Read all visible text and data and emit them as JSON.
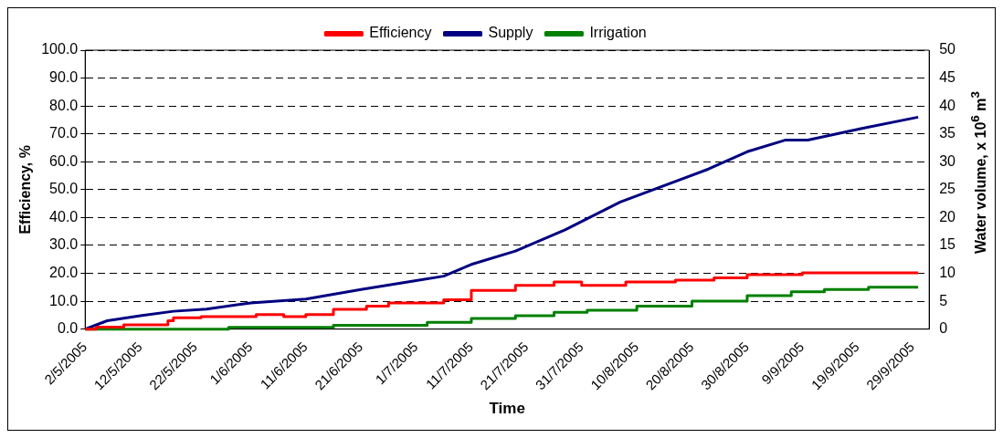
{
  "chart_data": {
    "type": "line",
    "xlabel": "Time",
    "ylabel": "Efficiency, %",
    "y2label": "Water volume, x 10$^{6}$ m$^{3}$",
    "xlim": [
      "2005-05-02",
      "2005-10-02"
    ],
    "xticks": [
      {
        "value": "2005-05-02",
        "label": "2/5/2005"
      },
      {
        "value": "2005-05-12",
        "label": "12/5/2005"
      },
      {
        "value": "2005-05-22",
        "label": "22/5/2005"
      },
      {
        "value": "2005-06-01",
        "label": "1/6/2005"
      },
      {
        "value": "2005-06-11",
        "label": "11/6/2005"
      },
      {
        "value": "2005-06-21",
        "label": "21/6/2005"
      },
      {
        "value": "2005-07-01",
        "label": "1/7/2005"
      },
      {
        "value": "2005-07-11",
        "label": "11/7/2005"
      },
      {
        "value": "2005-07-21",
        "label": "21/7/2005"
      },
      {
        "value": "2005-07-31",
        "label": "31/7/2005"
      },
      {
        "value": "2005-08-10",
        "label": "10/8/2005"
      },
      {
        "value": "2005-08-20",
        "label": "20/8/2005"
      },
      {
        "value": "2005-08-30",
        "label": "30/8/2005"
      },
      {
        "value": "2005-09-09",
        "label": "9/9/2005"
      },
      {
        "value": "2005-09-19",
        "label": "19/9/2005"
      },
      {
        "value": "2005-09-29",
        "label": "29/9/2005"
      }
    ],
    "ylim": [
      0,
      100
    ],
    "yticks": [
      {
        "value": 0,
        "label": "0.0"
      },
      {
        "value": 10,
        "label": "10.0"
      },
      {
        "value": 20,
        "label": "20.0"
      },
      {
        "value": 30,
        "label": "30.0"
      },
      {
        "value": 40,
        "label": "40.0"
      },
      {
        "value": 50,
        "label": "50.0"
      },
      {
        "value": 60,
        "label": "60.0"
      },
      {
        "value": 70,
        "label": "70.0"
      },
      {
        "value": 80,
        "label": "80.0"
      },
      {
        "value": 90,
        "label": "90.0"
      },
      {
        "value": 100,
        "label": "100.0"
      }
    ],
    "y2lim": [
      0,
      50
    ],
    "y2ticks": [
      0,
      5,
      10,
      15,
      20,
      25,
      30,
      35,
      40,
      45,
      50
    ],
    "grid": "y",
    "legend": "top",
    "marker": "none",
    "line_style": "solid",
    "series": [
      {
        "name": "Efficiency",
        "type": "step",
        "color": "#ff0000",
        "x": [
          "2005-05-02",
          "2005-05-04",
          "2005-05-09",
          "2005-05-17",
          "2005-05-18",
          "2005-05-23",
          "2005-06-02",
          "2005-06-07",
          "2005-06-11",
          "2005-06-16",
          "2005-06-22",
          "2005-06-26",
          "2005-07-06",
          "2005-07-11",
          "2005-07-19",
          "2005-07-26",
          "2005-07-31",
          "2005-08-08",
          "2005-08-17",
          "2005-08-24",
          "2005-08-30",
          "2005-09-09",
          "2005-09-30"
        ],
        "values": [
          0,
          0.7,
          1.5,
          3.0,
          4.1,
          4.5,
          5.2,
          4.5,
          5.2,
          7.1,
          8.2,
          9.4,
          10.5,
          13.9,
          15.7,
          16.9,
          15.7,
          16.9,
          17.6,
          18.4,
          19.5,
          20.2,
          20.2
        ]
      },
      {
        "name": "Supply",
        "type": "line",
        "axis": "y2",
        "color": "#000080",
        "x": [
          "2005-05-02",
          "2005-05-06",
          "2005-05-12",
          "2005-05-18",
          "2005-05-24",
          "2005-06-01",
          "2005-06-11",
          "2005-06-21",
          "2005-07-01",
          "2005-07-06",
          "2005-07-11",
          "2005-07-19",
          "2005-07-28",
          "2005-08-07",
          "2005-08-23",
          "2005-08-30",
          "2005-09-06",
          "2005-09-10",
          "2005-09-20",
          "2005-09-30"
        ],
        "values": [
          0,
          1.5,
          2.4,
          3.2,
          3.6,
          4.7,
          5.4,
          7.1,
          8.7,
          9.5,
          11.6,
          14.0,
          17.8,
          22.8,
          28.7,
          31.8,
          33.9,
          33.9,
          36.0,
          38.0
        ]
      },
      {
        "name": "Irrigation",
        "type": "step",
        "axis": "y2",
        "color": "#008000",
        "x": [
          "2005-05-02",
          "2005-05-28",
          "2005-06-16",
          "2005-07-03",
          "2005-07-11",
          "2005-07-19",
          "2005-07-26",
          "2005-08-01",
          "2005-08-10",
          "2005-08-20",
          "2005-08-30",
          "2005-09-07",
          "2005-09-13",
          "2005-09-21",
          "2005-09-30"
        ],
        "values": [
          0,
          0.3,
          0.7,
          1.2,
          1.9,
          2.4,
          3.0,
          3.4,
          4.1,
          5.0,
          6.0,
          6.7,
          7.1,
          7.5,
          7.5
        ]
      }
    ]
  }
}
